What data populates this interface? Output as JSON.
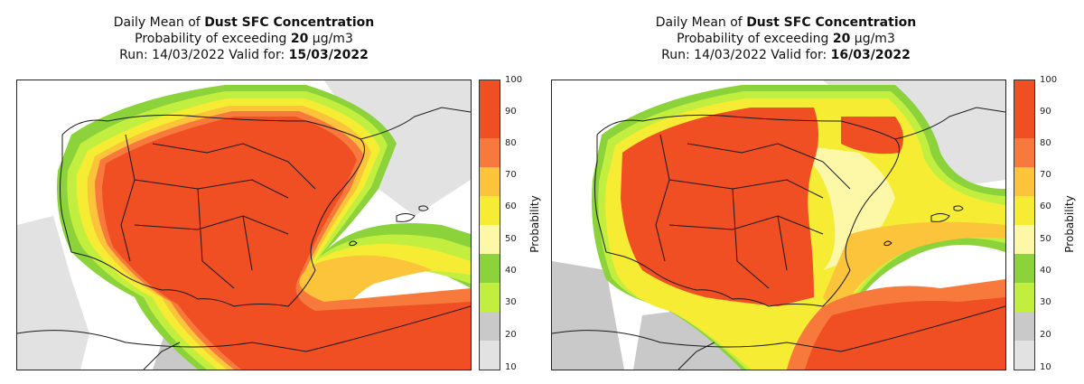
{
  "legend": {
    "title": "Probability",
    "ticks": [
      "100",
      "90",
      "80",
      "70",
      "60",
      "50",
      "40",
      "30",
      "20",
      "10"
    ],
    "colors": [
      "#f04e23",
      "#f77a3c",
      "#fbc43a",
      "#f5ec33",
      "#fdf7a8",
      "#8cd23a",
      "#c2ef3f",
      "#c9c9c9",
      "#e2e2e2"
    ]
  },
  "maps": [
    {
      "title_prefix": "Daily Mean of",
      "title_var": "Dust SFC Concentration",
      "subtitle_prefix": "Probability of exceeding",
      "threshold": "20",
      "unit": "µg/m3",
      "run_prefix": "Run: 14/03/2022 Valid for:",
      "valid_date": "15/03/2022"
    },
    {
      "title_prefix": "Daily Mean of",
      "title_var": "Dust SFC Concentration",
      "subtitle_prefix": "Probability of exceeding",
      "threshold": "20",
      "unit": "µg/m3",
      "run_prefix": "Run: 14/03/2022 Valid for:",
      "valid_date": "16/03/2022"
    }
  ]
}
